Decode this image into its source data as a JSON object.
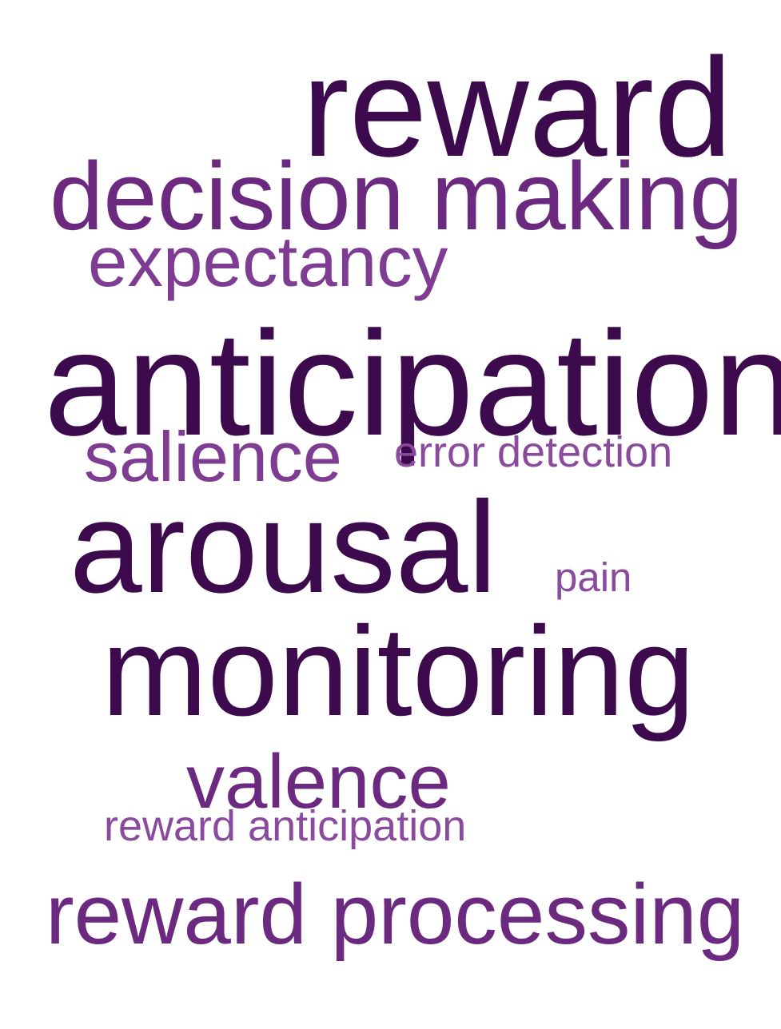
{
  "word_cloud": {
    "words": [
      {
        "text": "reward",
        "color": "#3d0a4e"
      },
      {
        "text": "decision making",
        "color": "#6b2a80"
      },
      {
        "text": "expectancy",
        "color": "#7e3d92"
      },
      {
        "text": "anticipation",
        "color": "#3d0a4e"
      },
      {
        "text": "salience",
        "color": "#7e3d92"
      },
      {
        "text": "error detection",
        "color": "#8a4b9e"
      },
      {
        "text": "arousal",
        "color": "#3d0a4e"
      },
      {
        "text": "pain",
        "color": "#8a4b9e"
      },
      {
        "text": "monitoring",
        "color": "#3d0a4e"
      },
      {
        "text": "valence",
        "color": "#6b2a80"
      },
      {
        "text": "reward anticipation",
        "color": "#8a4b9e"
      },
      {
        "text": "reward processing",
        "color": "#6b2a80"
      }
    ]
  }
}
